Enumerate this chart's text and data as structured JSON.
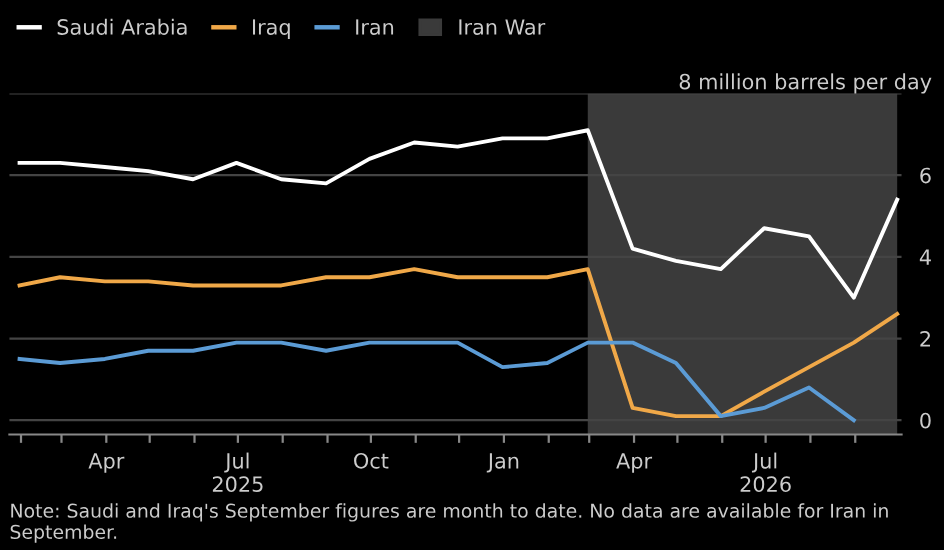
{
  "chart_data": {
    "type": "line",
    "x": [
      "2025-01-31",
      "2025-02-28",
      "2025-03-31",
      "2025-04-30",
      "2025-05-31",
      "2025-06-30",
      "2025-07-31",
      "2025-08-31",
      "2025-09-30",
      "2025-10-31",
      "2025-11-30",
      "2025-12-31",
      "2026-01-31",
      "2026-02-28",
      "2026-03-31",
      "2026-04-30",
      "2026-05-31",
      "2026-06-30",
      "2026-07-31",
      "2026-08-31",
      "2026-09-30"
    ],
    "series": [
      {
        "name": "Saudi Arabia",
        "color": "#ffffff",
        "values": [
          6.3,
          6.3,
          6.2,
          6.1,
          5.9,
          6.3,
          5.9,
          5.8,
          6.4,
          6.8,
          6.7,
          6.9,
          6.9,
          7.1,
          4.2,
          3.9,
          3.7,
          4.7,
          4.5,
          3.0,
          5.4
        ]
      },
      {
        "name": "Iraq",
        "color": "#f0a848",
        "values": [
          3.3,
          3.5,
          3.4,
          3.4,
          3.3,
          3.3,
          3.3,
          3.5,
          3.5,
          3.7,
          3.5,
          3.5,
          3.5,
          3.7,
          0.3,
          0.1,
          0.1,
          0.7,
          1.3,
          1.9,
          2.6
        ]
      },
      {
        "name": "Iran",
        "color": "#5b9bd5",
        "values": [
          1.5,
          1.4,
          1.5,
          1.7,
          1.7,
          1.9,
          1.9,
          1.7,
          1.9,
          1.9,
          1.9,
          1.3,
          1.4,
          1.9,
          1.9,
          1.4,
          0.1,
          0.3,
          0.8,
          0.0,
          null
        ]
      }
    ],
    "bands": [
      {
        "axis": "x",
        "from": "2026-02-28",
        "to": "2026-09-30",
        "label": "Iran War",
        "color": "#3a3a3a"
      }
    ],
    "xlim": [
      "2025-01-24",
      "2026-10-03"
    ],
    "xticks": [
      {
        "value": "2025-02-01",
        "label": null
      },
      {
        "value": "2025-03-01",
        "label": null
      },
      {
        "value": "2025-04-01",
        "label": "Apr"
      },
      {
        "value": "2025-05-01",
        "label": null
      },
      {
        "value": "2025-06-01",
        "label": null
      },
      {
        "value": "2025-07-01",
        "label": "Jul\n2025"
      },
      {
        "value": "2025-08-01",
        "label": null
      },
      {
        "value": "2025-09-01",
        "label": null
      },
      {
        "value": "2025-10-01",
        "label": "Oct"
      },
      {
        "value": "2025-11-01",
        "label": null
      },
      {
        "value": "2025-12-01",
        "label": null
      },
      {
        "value": "2026-01-01",
        "label": "Jan"
      },
      {
        "value": "2026-02-01",
        "label": null
      },
      {
        "value": "2026-03-01",
        "label": null
      },
      {
        "value": "2026-04-01",
        "label": "Apr"
      },
      {
        "value": "2026-05-01",
        "label": null
      },
      {
        "value": "2026-06-01",
        "label": null
      },
      {
        "value": "2026-07-01",
        "label": "Jul\n2026"
      },
      {
        "value": "2026-08-01",
        "label": null
      },
      {
        "value": "2026-09-01",
        "label": null
      }
    ],
    "ylim": [
      -0.35,
      8
    ],
    "yticks": [
      0,
      2,
      4,
      6,
      {
        "value": 8,
        "label": "8 million barrels per day"
      }
    ],
    "grid": "y",
    "legend": "top left",
    "annotations": [
      "Note: Saudi and Iraq's September figures are month to date. No data are available for Iran in September."
    ]
  }
}
